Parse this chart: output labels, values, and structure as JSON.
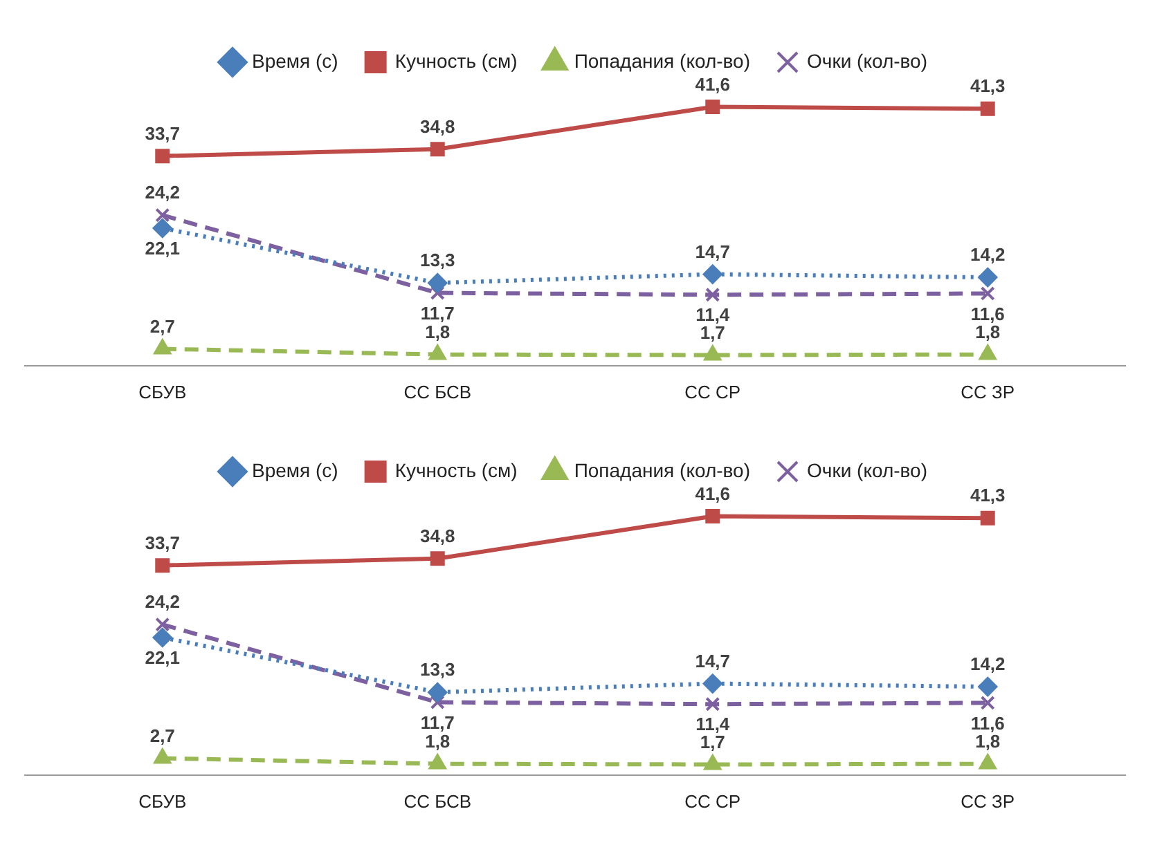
{
  "chart_data": [
    {
      "type": "line",
      "categories": [
        "СБУВ",
        "СС БСВ",
        "СС СР",
        "СС ЗР"
      ],
      "legend": "top",
      "grid": false,
      "series": [
        {
          "name": "Время (с)",
          "color": "#4a7ebb",
          "marker": "diamond",
          "line_style": "dotted",
          "values": [
            22.1,
            13.3,
            14.7,
            14.2
          ],
          "value_labels": [
            "22,1",
            "13,3",
            "14,7",
            "14,2"
          ]
        },
        {
          "name": "Кучность (см)",
          "color": "#be4b48",
          "marker": "square",
          "line_style": "solid",
          "values": [
            33.7,
            34.8,
            41.6,
            41.3
          ],
          "value_labels": [
            "33,7",
            "34,8",
            "41,6",
            "41,3"
          ]
        },
        {
          "name": "Попадания (кол-во)",
          "color": "#98b954",
          "marker": "triangle",
          "line_style": "dashed",
          "values": [
            2.7,
            1.8,
            1.7,
            1.8
          ],
          "value_labels": [
            "2,7",
            "1,8",
            "1,7",
            "1,8"
          ]
        },
        {
          "name": "Очки (кол-во)",
          "color": "#7d60a0",
          "marker": "cross",
          "line_style": "dashed",
          "values": [
            24.2,
            11.7,
            11.4,
            11.6
          ],
          "value_labels": [
            "24,2",
            "11,7",
            "11,4",
            "11,6"
          ]
        }
      ]
    },
    {
      "type": "line",
      "categories": [
        "СБУВ",
        "СС БСВ",
        "СС СР",
        "СС ЗР"
      ],
      "legend": "top",
      "grid": false,
      "series": [
        {
          "name": "Время (с)",
          "color": "#4a7ebb",
          "marker": "diamond",
          "line_style": "dotted",
          "values": [
            22.1,
            13.3,
            14.7,
            14.2
          ],
          "value_labels": [
            "22,1",
            "13,3",
            "14,7",
            "14,2"
          ]
        },
        {
          "name": "Кучность (см)",
          "color": "#be4b48",
          "marker": "square",
          "line_style": "solid",
          "values": [
            33.7,
            34.8,
            41.6,
            41.3
          ],
          "value_labels": [
            "33,7",
            "34,8",
            "41,6",
            "41,3"
          ]
        },
        {
          "name": "Попадания (кол-во)",
          "color": "#98b954",
          "marker": "triangle",
          "line_style": "dashed",
          "values": [
            2.7,
            1.8,
            1.7,
            1.8
          ],
          "value_labels": [
            "2,7",
            "1,8",
            "1,7",
            "1,8"
          ]
        },
        {
          "name": "Очки (кол-во)",
          "color": "#7d60a0",
          "marker": "cross",
          "line_style": "dashed",
          "values": [
            24.2,
            11.7,
            11.4,
            11.6
          ],
          "value_labels": [
            "24,2",
            "11,7",
            "11,4",
            "11,6"
          ]
        }
      ]
    }
  ]
}
